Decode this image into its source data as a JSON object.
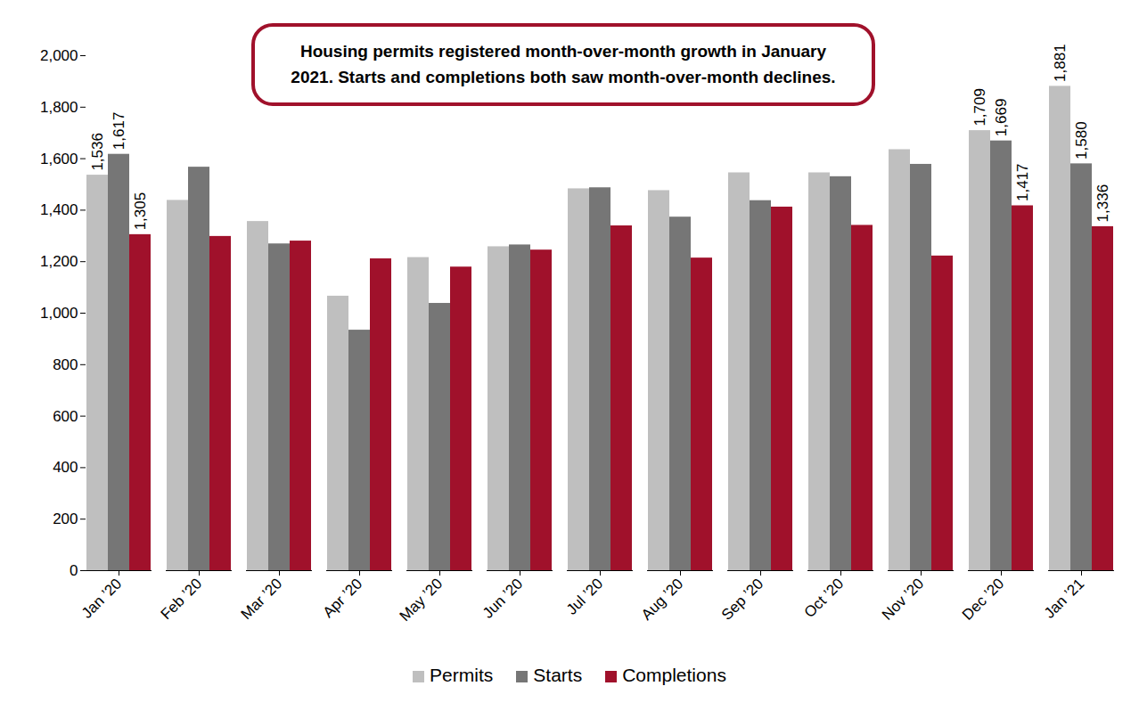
{
  "chart_data": {
    "type": "bar",
    "annotations": [
      "Housing permits registered month-over-month growth in January 2021. Starts and completions both saw month-over-month declines."
    ],
    "categories": [
      "Jan ’20",
      "Feb ’20",
      "Mar ’20",
      "Apr ’20",
      "May ’20",
      "Jun ’20",
      "Jul ’20",
      "Aug ’20",
      "Sep ’20",
      "Oct ’20",
      "Nov ’20",
      "Dec ’20",
      "Jan ’21"
    ],
    "series": [
      {
        "name": "Permits",
        "color": "#bfbfbf",
        "values": [
          1536,
          1438,
          1356,
          1066,
          1216,
          1258,
          1483,
          1476,
          1545,
          1545,
          1635,
          1709,
          1881
        ],
        "value_labels": [
          "1,536",
          null,
          null,
          null,
          null,
          null,
          null,
          null,
          null,
          null,
          null,
          "1,709",
          "1,881"
        ]
      },
      {
        "name": "Starts",
        "color": "#767676",
        "values": [
          1617,
          1567,
          1269,
          934,
          1038,
          1265,
          1487,
          1373,
          1437,
          1530,
          1578,
          1669,
          1580
        ],
        "value_labels": [
          "1,617",
          null,
          null,
          null,
          null,
          null,
          null,
          null,
          null,
          null,
          null,
          "1,669",
          "1,580"
        ]
      },
      {
        "name": "Completions",
        "color": "#a0112b",
        "values": [
          1305,
          1298,
          1280,
          1211,
          1179,
          1245,
          1339,
          1214,
          1412,
          1341,
          1222,
          1417,
          1336
        ],
        "value_labels": [
          "1,305",
          null,
          null,
          null,
          null,
          null,
          null,
          null,
          null,
          null,
          null,
          "1,417",
          "1,336"
        ]
      }
    ],
    "ylim": [
      0,
      2000
    ],
    "yticks": [
      0,
      200,
      400,
      600,
      800,
      {
        "value": 1000,
        "label": "1,000"
      },
      {
        "value": 1200,
        "label": "1,200"
      },
      {
        "value": 1400,
        "label": "1,400"
      },
      {
        "value": 1600,
        "label": "1,600"
      },
      {
        "value": 1800,
        "label": "1,800"
      },
      {
        "value": 2000,
        "label": "2,000"
      }
    ],
    "grid": false,
    "data_labels": true,
    "legend": "bottom"
  }
}
